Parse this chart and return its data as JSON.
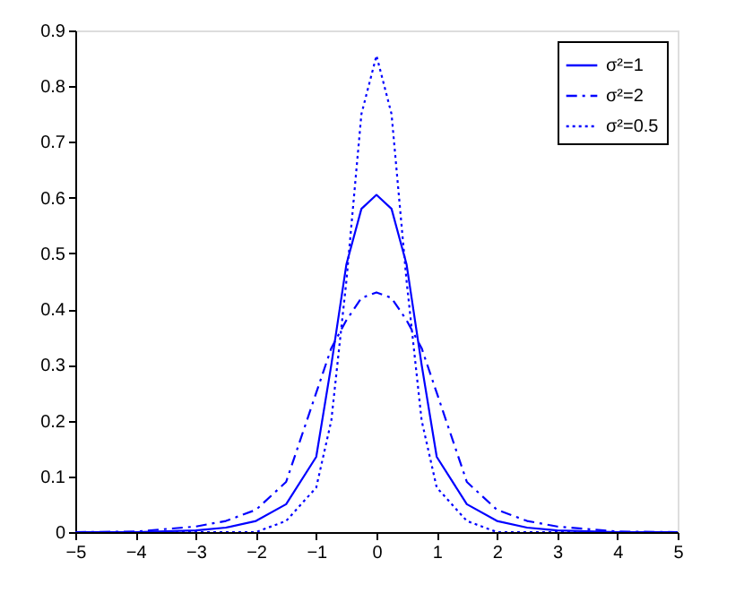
{
  "chart_data": {
    "type": "line",
    "xlim": [
      -5,
      5
    ],
    "xticks": [
      -5,
      -4,
      -3,
      -2,
      -1,
      0,
      1,
      2,
      3,
      4,
      5
    ],
    "ylim": [
      0,
      0.9
    ],
    "yticks": [
      0,
      0.1,
      0.2,
      0.3,
      0.4,
      0.5,
      0.6,
      0.7,
      0.8,
      0.9
    ],
    "grid": false,
    "legend": "top right",
    "marker": "none",
    "series": [
      {
        "name": "σ²=1",
        "color": "#0000ff",
        "line_style": "solid",
        "x": [
          -5,
          -4,
          -3,
          -2.5,
          -2,
          -1.5,
          -1,
          -0.75,
          -0.5,
          -0.25,
          0,
          0.25,
          0.5,
          0.75,
          1,
          1.5,
          2,
          2.5,
          3,
          4,
          5
        ],
        "values": [
          0,
          0,
          0.003,
          0.008,
          0.02,
          0.05,
          0.135,
          0.3,
          0.48,
          0.58,
          0.605,
          0.58,
          0.48,
          0.3,
          0.135,
          0.05,
          0.02,
          0.008,
          0.003,
          0,
          0
        ]
      },
      {
        "name": "σ²=2",
        "color": "#0000ff",
        "line_style": "dashed",
        "x": [
          -5,
          -4,
          -3,
          -2.5,
          -2,
          -1.5,
          -1,
          -0.75,
          -0.5,
          -0.25,
          0,
          0.25,
          0.5,
          0.75,
          1,
          1.5,
          2,
          2.5,
          3,
          4,
          5
        ],
        "values": [
          0,
          0.001,
          0.01,
          0.02,
          0.04,
          0.09,
          0.25,
          0.33,
          0.38,
          0.42,
          0.43,
          0.42,
          0.38,
          0.33,
          0.25,
          0.09,
          0.04,
          0.02,
          0.01,
          0.001,
          0
        ]
      },
      {
        "name": "σ²=0.5",
        "color": "#0000ff",
        "line_style": "dotted",
        "x": [
          -5,
          -3,
          -2,
          -1.5,
          -1,
          -0.75,
          -0.5,
          -0.25,
          0,
          0.25,
          0.5,
          0.75,
          1,
          1.5,
          2,
          3,
          5
        ],
        "values": [
          0,
          0,
          0,
          0.02,
          0.08,
          0.2,
          0.45,
          0.75,
          0.855,
          0.75,
          0.45,
          0.2,
          0.08,
          0.02,
          0,
          0,
          0
        ]
      }
    ]
  }
}
